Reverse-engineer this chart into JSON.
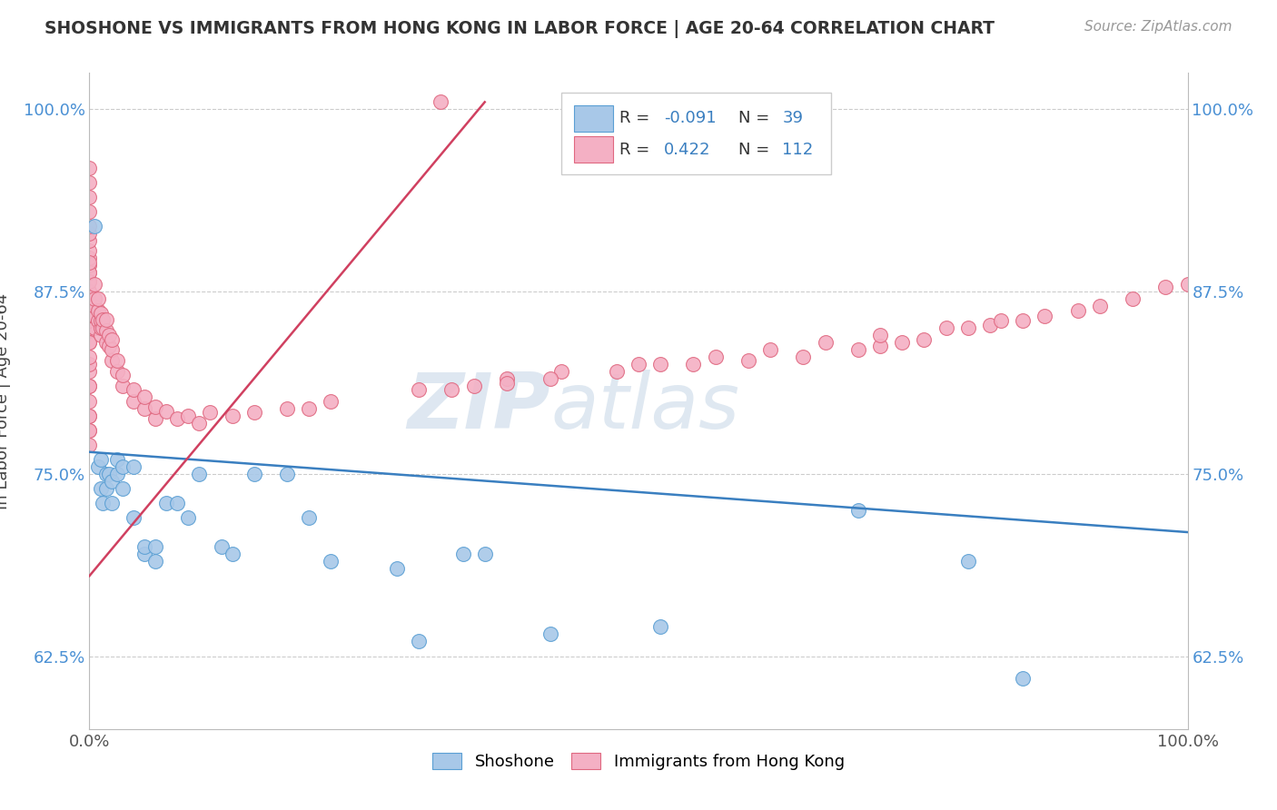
{
  "title": "SHOSHONE VS IMMIGRANTS FROM HONG KONG IN LABOR FORCE | AGE 20-64 CORRELATION CHART",
  "source_text": "Source: ZipAtlas.com",
  "ylabel": "In Labor Force | Age 20-64",
  "xlim": [
    0.0,
    1.0
  ],
  "ylim": [
    0.575,
    1.025
  ],
  "x_ticks": [
    0.0,
    0.25,
    0.5,
    0.75,
    1.0
  ],
  "x_tick_labels": [
    "0.0%",
    "",
    "",
    "",
    "100.0%"
  ],
  "y_ticks": [
    0.625,
    0.75,
    0.875,
    1.0
  ],
  "y_tick_labels": [
    "62.5%",
    "75.0%",
    "87.5%",
    "100.0%"
  ],
  "shoshone_color": "#a8c8e8",
  "shoshone_edge": "#5a9fd4",
  "hk_color": "#f4b0c4",
  "hk_edge": "#e06880",
  "shoshone_line_color": "#3a7fc0",
  "hk_line_color": "#d04060",
  "watermark_zip": "ZIP",
  "watermark_atlas": "atlas",
  "shoshone_x": [
    0.005,
    0.008,
    0.01,
    0.01,
    0.012,
    0.015,
    0.015,
    0.018,
    0.02,
    0.02,
    0.025,
    0.025,
    0.03,
    0.03,
    0.04,
    0.04,
    0.05,
    0.05,
    0.06,
    0.06,
    0.07,
    0.08,
    0.09,
    0.1,
    0.12,
    0.13,
    0.15,
    0.18,
    0.2,
    0.22,
    0.28,
    0.3,
    0.34,
    0.36,
    0.42,
    0.52,
    0.7,
    0.8,
    0.85
  ],
  "shoshone_y": [
    0.92,
    0.755,
    0.76,
    0.74,
    0.73,
    0.74,
    0.75,
    0.75,
    0.745,
    0.73,
    0.76,
    0.75,
    0.74,
    0.755,
    0.755,
    0.72,
    0.695,
    0.7,
    0.69,
    0.7,
    0.73,
    0.73,
    0.72,
    0.75,
    0.7,
    0.695,
    0.75,
    0.75,
    0.72,
    0.69,
    0.685,
    0.635,
    0.695,
    0.695,
    0.64,
    0.645,
    0.725,
    0.69,
    0.61
  ],
  "hk_x": [
    0.0,
    0.0,
    0.0,
    0.0,
    0.0,
    0.0,
    0.0,
    0.0,
    0.0,
    0.0,
    0.0,
    0.0,
    0.0,
    0.0,
    0.0,
    0.0,
    0.0,
    0.0,
    0.0,
    0.0,
    0.0,
    0.0,
    0.0,
    0.0,
    0.0,
    0.0,
    0.0,
    0.0,
    0.0,
    0.0,
    0.0,
    0.0,
    0.0,
    0.0,
    0.0,
    0.0,
    0.0,
    0.0,
    0.005,
    0.005,
    0.005,
    0.005,
    0.005,
    0.008,
    0.008,
    0.008,
    0.01,
    0.01,
    0.01,
    0.01,
    0.012,
    0.012,
    0.015,
    0.015,
    0.015,
    0.018,
    0.018,
    0.02,
    0.02,
    0.02,
    0.025,
    0.025,
    0.03,
    0.03,
    0.04,
    0.04,
    0.05,
    0.05,
    0.06,
    0.06,
    0.07,
    0.08,
    0.09,
    0.1,
    0.11,
    0.13,
    0.15,
    0.18,
    0.2,
    0.22,
    0.3,
    0.32,
    0.35,
    0.38,
    0.43,
    0.5,
    0.55,
    0.6,
    0.65,
    0.7,
    0.72,
    0.74,
    0.76,
    0.8,
    0.82,
    0.85,
    0.87,
    0.9,
    0.92,
    0.95,
    0.98,
    1.0,
    0.33,
    0.38,
    0.42,
    0.48,
    0.52,
    0.57,
    0.62,
    0.67,
    0.72,
    0.78,
    0.83
  ],
  "hk_y": [
    0.78,
    0.79,
    0.8,
    0.81,
    0.82,
    0.825,
    0.83,
    0.84,
    0.848,
    0.855,
    0.86,
    0.868,
    0.875,
    0.882,
    0.888,
    0.893,
    0.898,
    0.903,
    0.91,
    0.915,
    0.92,
    0.93,
    0.94,
    0.95,
    0.96,
    0.84,
    0.85,
    0.855,
    0.86,
    0.868,
    0.875,
    0.882,
    0.888,
    0.895,
    0.77,
    0.78,
    0.79,
    0.81,
    0.85,
    0.858,
    0.865,
    0.87,
    0.88,
    0.855,
    0.862,
    0.87,
    0.845,
    0.85,
    0.855,
    0.86,
    0.85,
    0.856,
    0.84,
    0.848,
    0.856,
    0.838,
    0.845,
    0.828,
    0.835,
    0.842,
    0.82,
    0.828,
    0.81,
    0.818,
    0.8,
    0.808,
    0.795,
    0.803,
    0.788,
    0.796,
    0.793,
    0.788,
    0.79,
    0.785,
    0.792,
    0.79,
    0.792,
    0.795,
    0.795,
    0.8,
    0.808,
    1.005,
    0.81,
    0.815,
    0.82,
    0.825,
    0.825,
    0.828,
    0.83,
    0.835,
    0.838,
    0.84,
    0.842,
    0.85,
    0.852,
    0.855,
    0.858,
    0.862,
    0.865,
    0.87,
    0.878,
    0.88,
    0.808,
    0.812,
    0.815,
    0.82,
    0.825,
    0.83,
    0.835,
    0.84,
    0.845,
    0.85,
    0.855
  ],
  "hk_line_x0": 0.0,
  "hk_line_y0": 0.68,
  "hk_line_x1": 0.36,
  "hk_line_y1": 1.005,
  "blue_line_x0": 0.0,
  "blue_line_y0": 0.765,
  "blue_line_x1": 1.0,
  "blue_line_y1": 0.71
}
